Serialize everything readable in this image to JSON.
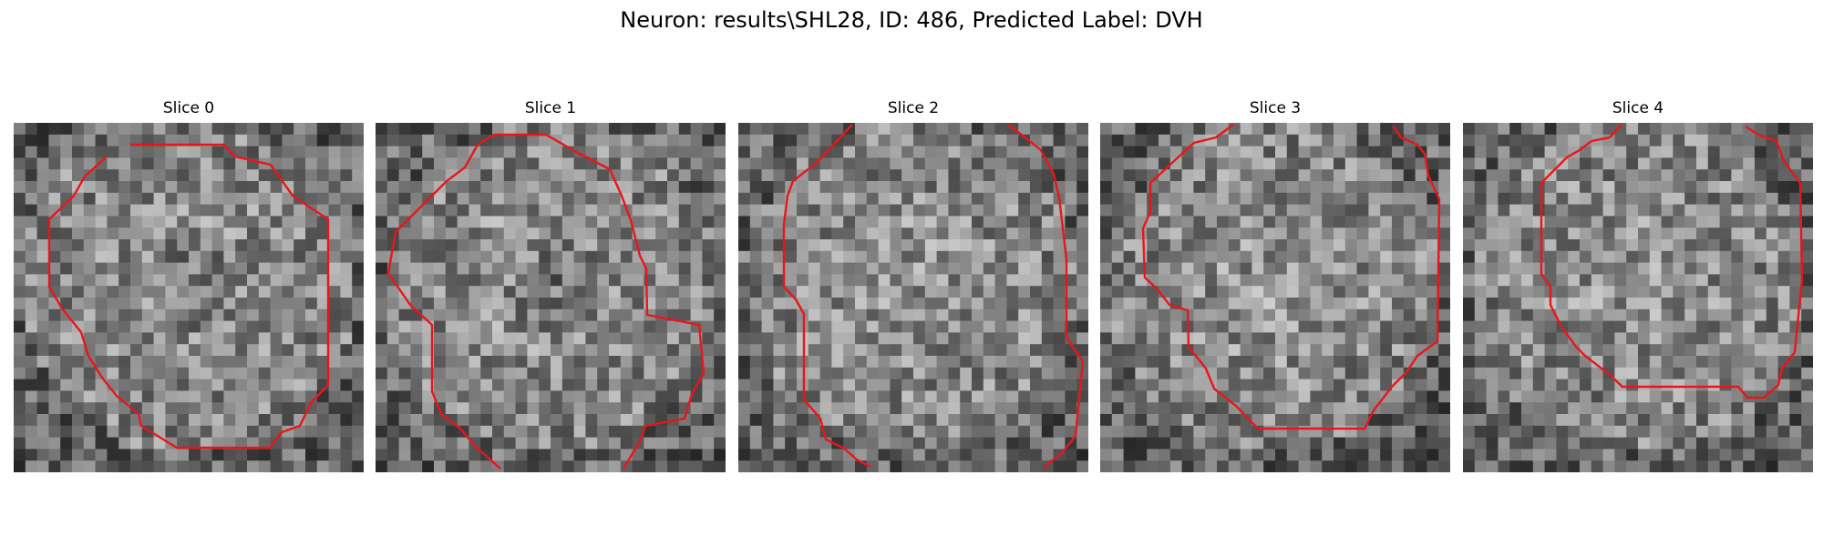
{
  "figure": {
    "title": "Neuron: results\\SHL28, ID: 486, Predicted Label: DVH",
    "contour_color": "#e8161b"
  },
  "slices": [
    {
      "title": "Slice 0",
      "seed": 11,
      "dark_center": true
    },
    {
      "title": "Slice 1",
      "seed": 23,
      "dark_center": true
    },
    {
      "title": "Slice 2",
      "seed": 37,
      "dark_center": false
    },
    {
      "title": "Slice 3",
      "seed": 41,
      "dark_center": false
    },
    {
      "title": "Slice 4",
      "seed": 59,
      "dark_center": false
    }
  ]
}
